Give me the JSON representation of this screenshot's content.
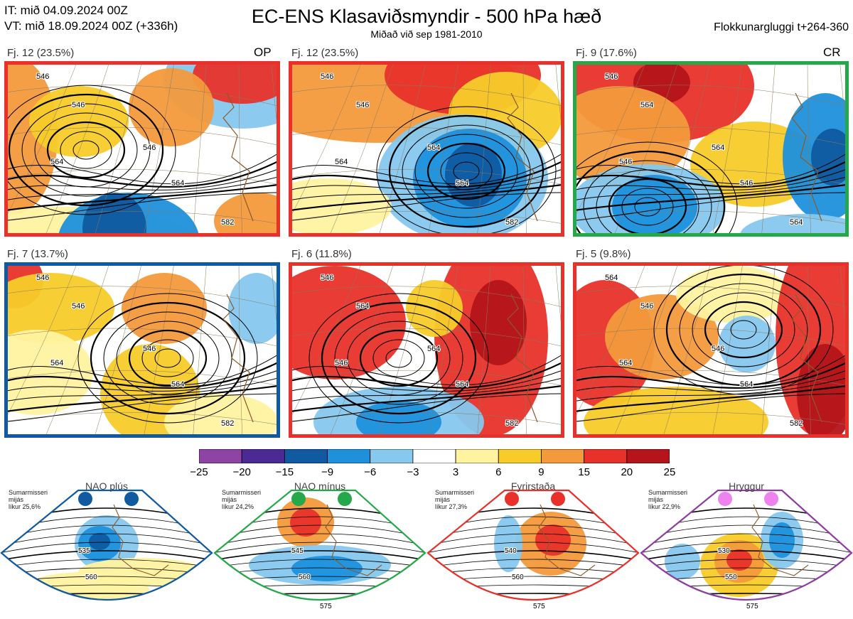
{
  "header": {
    "it_line": "IT: mið 04.09.2024 00Z",
    "vt_line": "VT: mið 18.09.2024 00Z  (+336h)",
    "title": "EC-ENS Klasaviðsmyndir - 500 hPa hæð",
    "subtitle": "Miðað við sep 1981-2010",
    "window": "Flokkunargluggi t+264-360"
  },
  "panels": [
    {
      "label": "Fj. 12 (23.5%)",
      "tag": "OP",
      "border": "#e8312a",
      "contours": [
        "546",
        "546",
        "546",
        "564",
        "564",
        "582"
      ]
    },
    {
      "label": "Fj. 12 (23.5%)",
      "tag": "",
      "border": "#e8312a",
      "contours": [
        "546",
        "546",
        "564",
        "564",
        "564",
        "582"
      ]
    },
    {
      "label": "Fj. 9 (17.6%)",
      "tag": "CR",
      "border": "#25a84a",
      "contours": [
        "546",
        "564",
        "564",
        "546",
        "546",
        "564"
      ]
    },
    {
      "label": "Fj. 7 (13.7%)",
      "tag": "",
      "border": "#0f5aa0",
      "contours": [
        "546",
        "546",
        "546",
        "564",
        "564",
        "582"
      ]
    },
    {
      "label": "Fj. 6 (11.8%)",
      "tag": "",
      "border": "#e8312a",
      "contours": [
        "546",
        "564",
        "564",
        "546",
        "564",
        "582"
      ]
    },
    {
      "label": "Fj. 5 (9.8%)",
      "tag": "",
      "border": "#e8312a",
      "contours": [
        "564",
        "546",
        "546",
        "564",
        "564",
        "582"
      ]
    }
  ],
  "colorbar": {
    "ticks": [
      "−25",
      "−20",
      "−15",
      "−9",
      "−6",
      "−3",
      "3",
      "6",
      "9",
      "15",
      "20",
      "25"
    ],
    "colors": [
      "#8e44a4",
      "#4b2a94",
      "#0f5aa0",
      "#1e90dc",
      "#86c8ee",
      "#ffffff",
      "#fff3a0",
      "#f7cc2a",
      "#f39a3c",
      "#e8312a",
      "#b4141a"
    ]
  },
  "regimes": [
    {
      "name": "NAO plús",
      "info": [
        "Sumarmisseri",
        "mijás",
        "líkur 25,6%"
      ],
      "color": "#0f5aa0",
      "dot": "#0f5aa0",
      "contours": [
        "535",
        "560"
      ]
    },
    {
      "name": "NAO mínus",
      "info": [
        "Sumarmisseri",
        "mijás",
        "líkur 24,2%"
      ],
      "color": "#25a84a",
      "dot": "#25a84a",
      "contours": [
        "545",
        "560",
        "575"
      ]
    },
    {
      "name": "Fyrirstaða",
      "info": [
        "Sumarmisseri",
        "mijás",
        "líkur 27,3%"
      ],
      "color": "#e8312a",
      "dot": "#e8312a",
      "contours": [
        "540",
        "560",
        "575"
      ]
    },
    {
      "name": "Hryggur",
      "info": [
        "Sumarmisseri",
        "mijás",
        "líkur 22,9%"
      ],
      "color": "#8e3da0",
      "dot": "#ee82ee",
      "contours": [
        "530",
        "550",
        "575"
      ]
    }
  ]
}
